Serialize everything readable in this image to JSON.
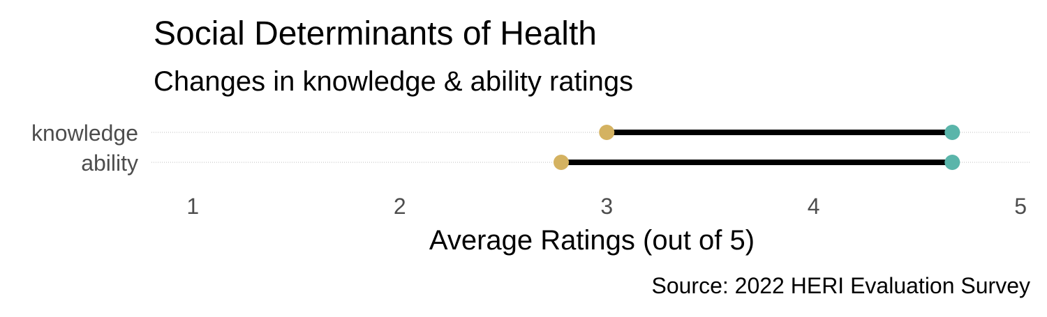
{
  "chart_data": {
    "type": "dumbbell",
    "title": "Social Determinants of Health",
    "subtitle": "Changes in knowledge & ability ratings",
    "xlabel": "Average Ratings (out of 5)",
    "caption": "Source: 2022 HERI Evaluation Survey",
    "xlim": [
      0.8,
      5.05
    ],
    "xticks": [
      1,
      2,
      3,
      4,
      5
    ],
    "categories": [
      "knowledge",
      "ability"
    ],
    "series": [
      {
        "values": [
          3.0,
          2.78
        ],
        "color": "#D4B261"
      },
      {
        "values": [
          4.67,
          4.67
        ],
        "color": "#5AB5AA"
      }
    ],
    "segment_color": "#000000",
    "guide_color": "#BDBDBD",
    "grid": false,
    "legend": "none"
  }
}
